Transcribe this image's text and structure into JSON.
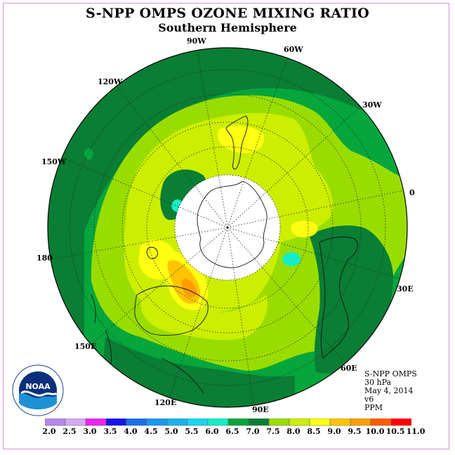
{
  "title": "S-NPP OMPS OZONE MIXING RATIO",
  "subtitle": "Southern Hemisphere",
  "longitude_labels": [
    "90W",
    "60W",
    "30W",
    "120W",
    "150W",
    "0",
    "180",
    "30E",
    "150E",
    "60E",
    "120E",
    "90E"
  ],
  "info": {
    "instrument": "S-NPP OMPS",
    "level": "30 hPa",
    "date": "May 4, 2014",
    "version": "v6",
    "units": "PPM"
  },
  "colorbar": {
    "ticks": [
      "2.0",
      "2.5",
      "3.0",
      "3.5",
      "4.0",
      "4.5",
      "5.0",
      "5.5",
      "6.0",
      "6.5",
      "7.0",
      "7.5",
      "8.0",
      "8.5",
      "9.0",
      "9.5",
      "10.0",
      "10.5",
      "11.0"
    ],
    "colors": [
      "#b589e8",
      "#d4a9f0",
      "#ee22ee",
      "#1515e8",
      "#1a70e8",
      "#1a9aec",
      "#1ab2ec",
      "#1ad6f0",
      "#14eec6",
      "#06a63c",
      "#0a7e34",
      "#99dd00",
      "#ccee00",
      "#ffff11",
      "#ffc400",
      "#ff9d00",
      "#ff5a00",
      "#ff0000",
      "#995533"
    ]
  },
  "logo_text": "NOAA"
}
